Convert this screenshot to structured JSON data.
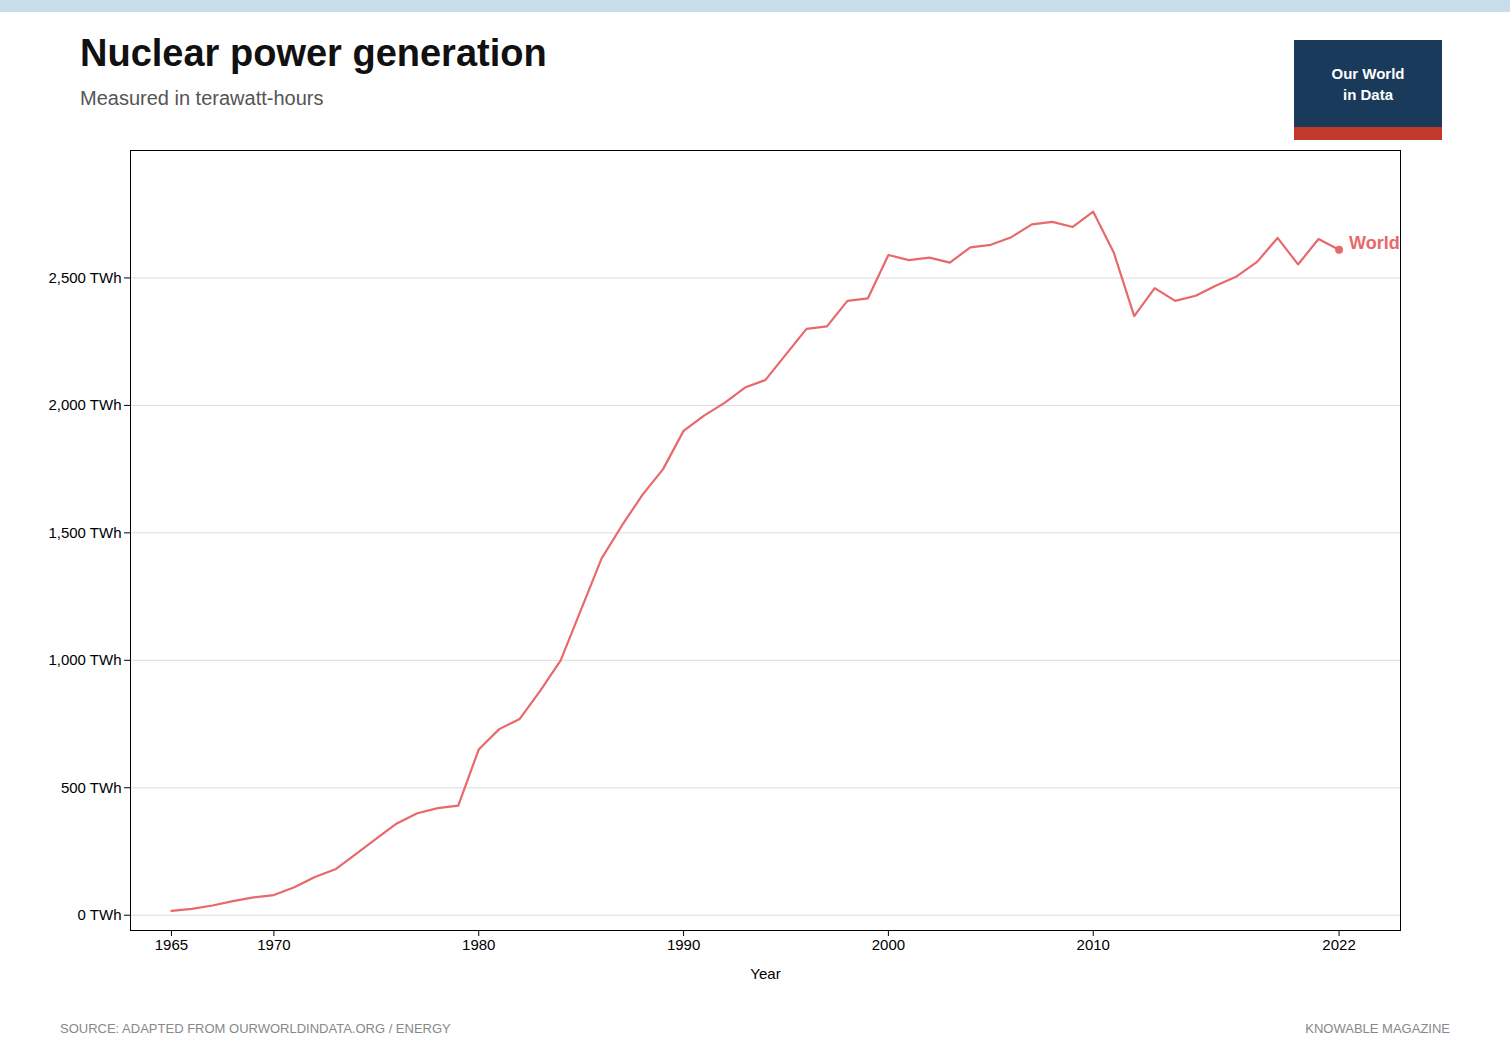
{
  "chart_data": {
    "type": "line",
    "title": "Nuclear power generation",
    "subtitle": "Measured in terawatt-hours",
    "xlabel": "Year",
    "color": "#e8696b",
    "x": [
      1965,
      1966,
      1967,
      1968,
      1969,
      1970,
      1971,
      1972,
      1973,
      1974,
      1975,
      1976,
      1977,
      1978,
      1979,
      1980,
      1981,
      1982,
      1983,
      1984,
      1985,
      1986,
      1987,
      1988,
      1989,
      1990,
      1991,
      1992,
      1993,
      1994,
      1995,
      1996,
      1997,
      1998,
      1999,
      2000,
      2001,
      2002,
      2003,
      2004,
      2005,
      2006,
      2007,
      2008,
      2009,
      2010,
      2011,
      2012,
      2013,
      2014,
      2015,
      2016,
      2017,
      2018,
      2019,
      2020,
      2021,
      2022
    ],
    "values": [
      17,
      25,
      38,
      55,
      70,
      79,
      110,
      150,
      180,
      240,
      300,
      360,
      400,
      420,
      430,
      650,
      730,
      770,
      880,
      1000,
      1200,
      1400,
      1530,
      1650,
      1750,
      1900,
      1960,
      2010,
      2070,
      2100,
      2200,
      2300,
      2310,
      2410,
      2420,
      2590,
      2570,
      2580,
      2560,
      2620,
      2630,
      2660,
      2710,
      2720,
      2700,
      2760,
      2600,
      2350,
      2460,
      2410,
      2430,
      2470,
      2506,
      2563,
      2657,
      2553,
      2653,
      2611
    ],
    "xlim": [
      1963,
      2025
    ],
    "xticks": [
      1965,
      1970,
      1980,
      1990,
      2000,
      2010,
      2022
    ],
    "ylim": [
      -60,
      3000
    ],
    "yticks": [
      {
        "value": 0,
        "label": "0 TWh"
      },
      {
        "value": 500,
        "label": "500 TWh"
      },
      {
        "value": 1000,
        "label": "1,000 TWh"
      },
      {
        "value": 1500,
        "label": "1,500 TWh"
      },
      {
        "value": 2000,
        "label": "2,000 TWh"
      },
      {
        "value": 2500,
        "label": "2,500 TWh"
      }
    ],
    "grid": "y",
    "annotations": [
      {
        "text": "World",
        "x": 2022,
        "y": 2611
      }
    ],
    "source": "SOURCE: ADAPTED FROM OURWORLDINDATA.ORG / ENERGY",
    "credit": "KNOWABLE MAGAZINE",
    "logo": {
      "lines": [
        "Our World",
        "in Data"
      ],
      "color": "#1a3a5c",
      "bar_color": "#c0392b"
    },
    "stripe_color": "#c8dde8"
  }
}
